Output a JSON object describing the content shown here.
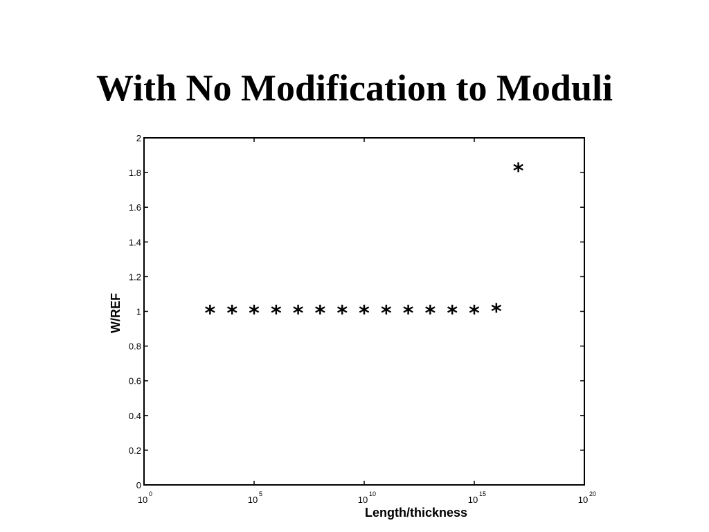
{
  "slide": {
    "title": "With No Modification to Moduli"
  },
  "chart_data": {
    "type": "scatter",
    "marker": "*",
    "xscale": "log",
    "xlabel": "Length/thickness",
    "ylabel": "W/REF",
    "xlim": [
      1,
      1e+20
    ],
    "ylim": [
      0,
      2
    ],
    "xticks": [
      {
        "base": "10",
        "exp": "0"
      },
      {
        "base": "10",
        "exp": "5"
      },
      {
        "base": "10",
        "exp": "10"
      },
      {
        "base": "10",
        "exp": "15"
      },
      {
        "base": "10",
        "exp": "20"
      }
    ],
    "yticks": [
      "0",
      "0.2",
      "0.4",
      "0.6",
      "0.8",
      "1",
      "1.2",
      "1.4",
      "1.6",
      "1.8",
      "2"
    ],
    "grid": false,
    "points": [
      {
        "x": 1000.0,
        "y": 1.0
      },
      {
        "x": 10000.0,
        "y": 1.0
      },
      {
        "x": 100000.0,
        "y": 1.0
      },
      {
        "x": 1000000.0,
        "y": 1.0
      },
      {
        "x": 10000000.0,
        "y": 1.0
      },
      {
        "x": 100000000.0,
        "y": 1.0
      },
      {
        "x": 1000000000.0,
        "y": 1.0
      },
      {
        "x": 10000000000.0,
        "y": 1.0
      },
      {
        "x": 100000000000.0,
        "y": 1.0
      },
      {
        "x": 1000000000000.0,
        "y": 1.0
      },
      {
        "x": 10000000000000.0,
        "y": 1.0
      },
      {
        "x": 100000000000000.0,
        "y": 1.0
      },
      {
        "x": 1000000000000000.0,
        "y": 1.0
      },
      {
        "x": 1e+16,
        "y": 1.01
      },
      {
        "x": 1e+17,
        "y": 1.82
      }
    ]
  }
}
